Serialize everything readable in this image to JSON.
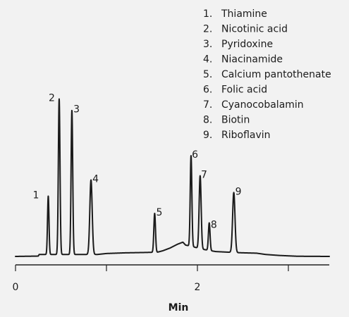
{
  "chart_data": {
    "type": "line",
    "title": "",
    "xlabel": "Min",
    "ylabel": "",
    "xlim": [
      0,
      3.45
    ],
    "ylim": [
      0,
      100
    ],
    "x_major_ticks": [
      0,
      1,
      2,
      3
    ],
    "x_tick_labels": [
      {
        "value": 0,
        "label": "0"
      },
      {
        "value": 2,
        "label": "2"
      }
    ],
    "legend_position": "top-right",
    "legend": [
      "1.  Thiamine",
      "2.  Nicotinic acid",
      "3.  Pyridoxine",
      "4.  Niacinamide",
      "5.  Calcium pantothenate",
      "6.  Folic acid",
      "7.  Cyanocobalamin",
      "8.  Biotin",
      "9.  Riboflavin"
    ],
    "peaks": [
      {
        "label": "1",
        "rt": 0.36,
        "height": 36,
        "width": 0.008
      },
      {
        "label": "2",
        "rt": 0.48,
        "height": 96,
        "width": 0.009
      },
      {
        "label": "3",
        "rt": 0.62,
        "height": 89,
        "width": 0.009
      },
      {
        "label": "4",
        "rt": 0.83,
        "height": 46,
        "width": 0.013
      },
      {
        "label": "5",
        "rt": 1.53,
        "height": 24,
        "width": 0.009
      },
      {
        "label": "6",
        "rt": 1.93,
        "height": 56,
        "width": 0.009
      },
      {
        "label": "7",
        "rt": 2.03,
        "height": 45,
        "width": 0.011
      },
      {
        "label": "8",
        "rt": 2.13,
        "height": 17,
        "width": 0.009
      },
      {
        "label": "9",
        "rt": 2.4,
        "height": 37,
        "width": 0.013
      }
    ],
    "baseline": [
      [
        0.0,
        0.0
      ],
      [
        0.25,
        0.2
      ],
      [
        0.26,
        1.2
      ],
      [
        0.9,
        1.2
      ],
      [
        1.0,
        1.8
      ],
      [
        1.2,
        2.2
      ],
      [
        1.4,
        2.4
      ],
      [
        1.56,
        2.6
      ],
      [
        1.62,
        3.5
      ],
      [
        1.7,
        5.2
      ],
      [
        1.78,
        7.5
      ],
      [
        1.84,
        8.8
      ],
      [
        1.87,
        7.0
      ],
      [
        1.95,
        6.0
      ],
      [
        2.05,
        4.5
      ],
      [
        2.2,
        3.0
      ],
      [
        2.45,
        2.3
      ],
      [
        2.65,
        2.0
      ],
      [
        2.75,
        1.2
      ],
      [
        2.9,
        0.6
      ],
      [
        3.1,
        0.1
      ],
      [
        3.45,
        0.0
      ]
    ]
  }
}
